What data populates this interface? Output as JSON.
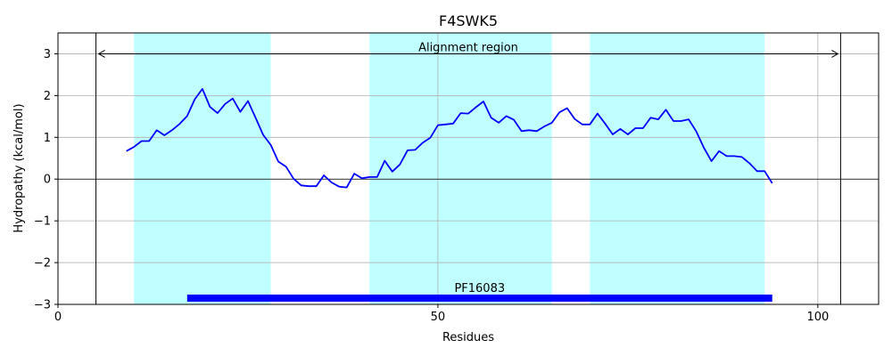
{
  "chart_data": {
    "type": "line",
    "title": "F4SWK5",
    "xlabel": "Residues",
    "ylabel": "Hydropathy (kcal/mol)",
    "xlim": [
      0,
      108
    ],
    "ylim": [
      -3,
      3.5
    ],
    "xticks": [
      0,
      50,
      100
    ],
    "yticks": [
      -3,
      -2,
      -1,
      0,
      1,
      2,
      3
    ],
    "grid": true,
    "colors": {
      "line": "#0000ff",
      "band": "#c0ffff",
      "domain_bar": "#0000ff",
      "grid": "#b0b0b0"
    },
    "tm_regions": [
      [
        10,
        28
      ],
      [
        41,
        65
      ],
      [
        70,
        93
      ]
    ],
    "alignment_region": {
      "label": "Alignment region",
      "start": 5,
      "end": 103,
      "y": 3
    },
    "domain": {
      "label": "PF16083",
      "start": 17,
      "end": 94,
      "y": -2.85
    },
    "series": [
      {
        "x": [
          9,
          10,
          11,
          12,
          13,
          14,
          15,
          16,
          17,
          18,
          19,
          20,
          21,
          22,
          23,
          24,
          25,
          26,
          27,
          28,
          29,
          30,
          31,
          32,
          33,
          34,
          35,
          36,
          37,
          38,
          39,
          40,
          41,
          42,
          43,
          44,
          45,
          46,
          47,
          48,
          49,
          50,
          51,
          52,
          53,
          54,
          55,
          56,
          57,
          58,
          59,
          60,
          61,
          62,
          63,
          64,
          65,
          66,
          67,
          68,
          69,
          70,
          71,
          72,
          73,
          74,
          75,
          76,
          77,
          78,
          79,
          80,
          81,
          82,
          83,
          84,
          85,
          86,
          87,
          88,
          89,
          90,
          91,
          92,
          93,
          94
        ],
        "y": [
          0.67,
          0.77,
          0.91,
          0.91,
          1.17,
          1.05,
          1.17,
          1.32,
          1.51,
          1.91,
          2.16,
          1.73,
          1.58,
          1.8,
          1.93,
          1.61,
          1.87,
          1.47,
          1.06,
          0.82,
          0.42,
          0.3,
          0.01,
          -0.15,
          -0.17,
          -0.17,
          0.09,
          -0.08,
          -0.18,
          -0.2,
          0.13,
          0.02,
          0.05,
          0.05,
          0.44,
          0.18,
          0.35,
          0.69,
          0.7,
          0.87,
          0.99,
          1.29,
          1.31,
          1.33,
          1.58,
          1.57,
          1.72,
          1.86,
          1.47,
          1.35,
          1.51,
          1.42,
          1.15,
          1.17,
          1.15,
          1.26,
          1.35,
          1.6,
          1.7,
          1.44,
          1.31,
          1.31,
          1.57,
          1.33,
          1.07,
          1.2,
          1.07,
          1.22,
          1.22,
          1.47,
          1.43,
          1.66,
          1.39,
          1.39,
          1.43,
          1.14,
          0.75,
          0.43,
          0.67,
          0.55,
          0.55,
          0.53,
          0.38,
          0.19,
          0.19,
          -0.1
        ]
      }
    ]
  }
}
